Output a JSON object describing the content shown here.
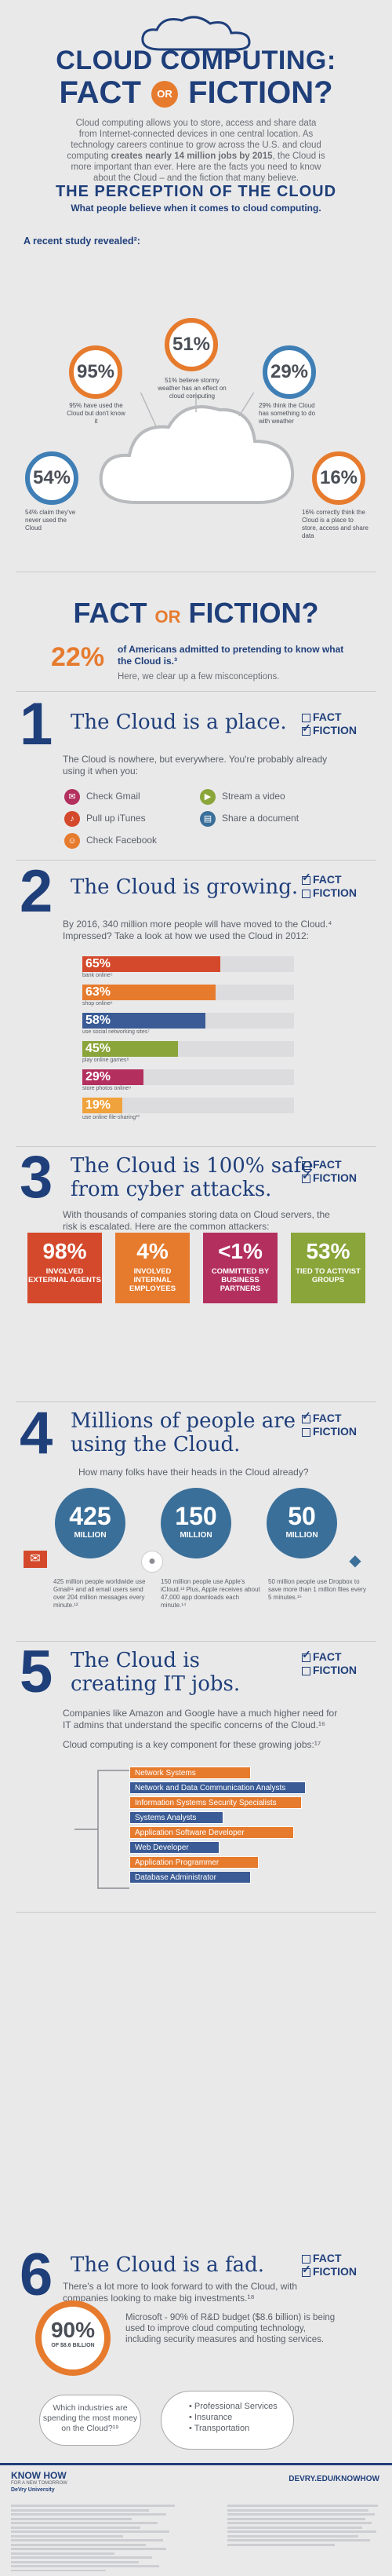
{
  "hero": {
    "title": "CLOUD COMPUTING:",
    "fact": "FACT",
    "or": "OR",
    "fiction": "FICTION?",
    "intro_1": "Cloud computing allows you to store, access and share data from Internet-connected devices in one central location. As technology careers continue to grow across the U.S. and cloud computing",
    "intro_bold": "creates nearly 14 million jobs by 2015",
    "intro_2": ", the Cloud is more important than ever. Here are the facts you need to know about the Cloud – and the fiction that many believe."
  },
  "perception": {
    "title": "THE PERCEPTION OF THE CLOUD",
    "subtitle": "What people believe when it comes to cloud computing.",
    "study": "A recent study revealed²:",
    "stats": [
      {
        "value": "95%",
        "note": "95% have used the Cloud but don't know it"
      },
      {
        "value": "51%",
        "note": "51% believe stormy weather has an effect on cloud computing"
      },
      {
        "value": "29%",
        "note": "29% think the Cloud has something to do with weather"
      },
      {
        "value": "54%",
        "note": "54% claim they've never used the Cloud"
      },
      {
        "value": "16%",
        "note": "16% correctly think the Cloud is a place to store, access and share data"
      }
    ]
  },
  "fof": {
    "fact": "FACT",
    "or": "OR",
    "fiction": "FICTION?",
    "pct": "22%",
    "pct_text": "of Americans admitted to pretending to know what the Cloud is.³",
    "clear_up": "Here, we clear up a few misconceptions."
  },
  "verdict_labels": {
    "fact": "FACT",
    "fiction": "FICTION"
  },
  "s1": {
    "num": "1",
    "claim": "The Cloud is a place.",
    "para": "The Cloud is nowhere, but everywhere. You're probably already using it when you:",
    "uses": [
      "Check Gmail",
      "Stream a video",
      "Pull up iTunes",
      "Share a document",
      "Check Facebook"
    ]
  },
  "s2": {
    "num": "2",
    "claim_1": "The Cloud is growing.",
    "para": "By 2016, 340 million more people will have moved to the Cloud.⁴ Impressed? Take a look at how we used the Cloud in 2012:",
    "bars": [
      {
        "pct": "65%",
        "value": 65,
        "label": "bank online⁵",
        "color": "#d4492b"
      },
      {
        "pct": "63%",
        "value": 63,
        "label": "shop online⁶",
        "color": "#e67b2e"
      },
      {
        "pct": "58%",
        "value": 58,
        "label": "use social networking sites⁷",
        "color": "#3a5b95"
      },
      {
        "pct": "45%",
        "value": 45,
        "label": "play online games⁸",
        "color": "#8aa539"
      },
      {
        "pct": "29%",
        "value": 29,
        "label": "store photos online⁹",
        "color": "#b3305e"
      },
      {
        "pct": "19%",
        "value": 19,
        "label": "use online file-sharing¹⁰",
        "color": "#f0a23c"
      }
    ]
  },
  "s3": {
    "num": "3",
    "claim_1": "The Cloud is 100% safe",
    "claim_2": "from cyber attacks.",
    "para": "With thousands of companies storing data on Cloud servers, the risk is escalated. Here are the common attackers:",
    "tiles": [
      {
        "big": "98%",
        "lbl": "INVOLVED EXTERNAL AGENTS",
        "color": "#d4492b"
      },
      {
        "big": "4%",
        "lbl": "INVOLVED INTERNAL EMPLOYEES",
        "color": "#e67b2e"
      },
      {
        "big": "<1%",
        "lbl": "COMMITTED BY BUSINESS PARTNERS",
        "color": "#b3305e"
      },
      {
        "big": "53%",
        "lbl": "TIED TO ACTIVIST GROUPS",
        "color": "#8aa539"
      }
    ]
  },
  "s4": {
    "num": "4",
    "claim_1": "Millions of people are",
    "claim_2": "using the Cloud.",
    "para": "How many folks have their heads in the Cloud already?",
    "circles": [
      {
        "n": "425",
        "m": "MILLION",
        "note": "425 million people worldwide use Gmail¹¹ and all email users send over 204 million messages every minute.¹²"
      },
      {
        "n": "150",
        "m": "MILLION",
        "note": "150 million people use Apple's iCloud.¹³ Plus, Apple receives about 47,000 app downloads each minute.¹⁴"
      },
      {
        "n": "50",
        "m": "MILLION",
        "note": "50 million people use Dropbox to save more than 1 million files every 5 minutes.¹⁵"
      }
    ]
  },
  "s5": {
    "num": "5",
    "claim_1": "The Cloud is",
    "claim_2": "creating IT jobs.",
    "para1": "Companies like Amazon and Google have a much higher need for IT admins that understand the specific concerns of the Cloud.¹⁶",
    "para2": "Cloud computing is a key component for these growing jobs:¹⁷",
    "jobs": [
      "Network Systems Administrators",
      "Network and Data Communication Analysts",
      "Information Systems Security Specialists",
      "Systems Analysts",
      "Application Software Developer",
      "Web Developer",
      "Application Programmer",
      "Database Administrator"
    ]
  },
  "s6": {
    "num": "6",
    "claim": "The Cloud is a fad.",
    "para": "There's a lot more to look forward to with the Cloud, with companies looking to make big investments.¹⁸",
    "pct": "90%",
    "pct_sub": "OF $8.6 BILLION",
    "text": "Microsoft - 90% of R&D budget ($8.6 billion) is being used to improve cloud computing technology, including security measures and hosting services.",
    "question": "Which industries are spending the most money on the Cloud?¹⁹",
    "industries": [
      "Professional Services",
      "Insurance",
      "Transportation"
    ]
  },
  "footer": {
    "brand": "KNOW HOW",
    "brand_sub": "FOR A NEW TOMORROW",
    "logo": "DeVry University",
    "url": "DEVRY.EDU/KNOWHOW"
  }
}
